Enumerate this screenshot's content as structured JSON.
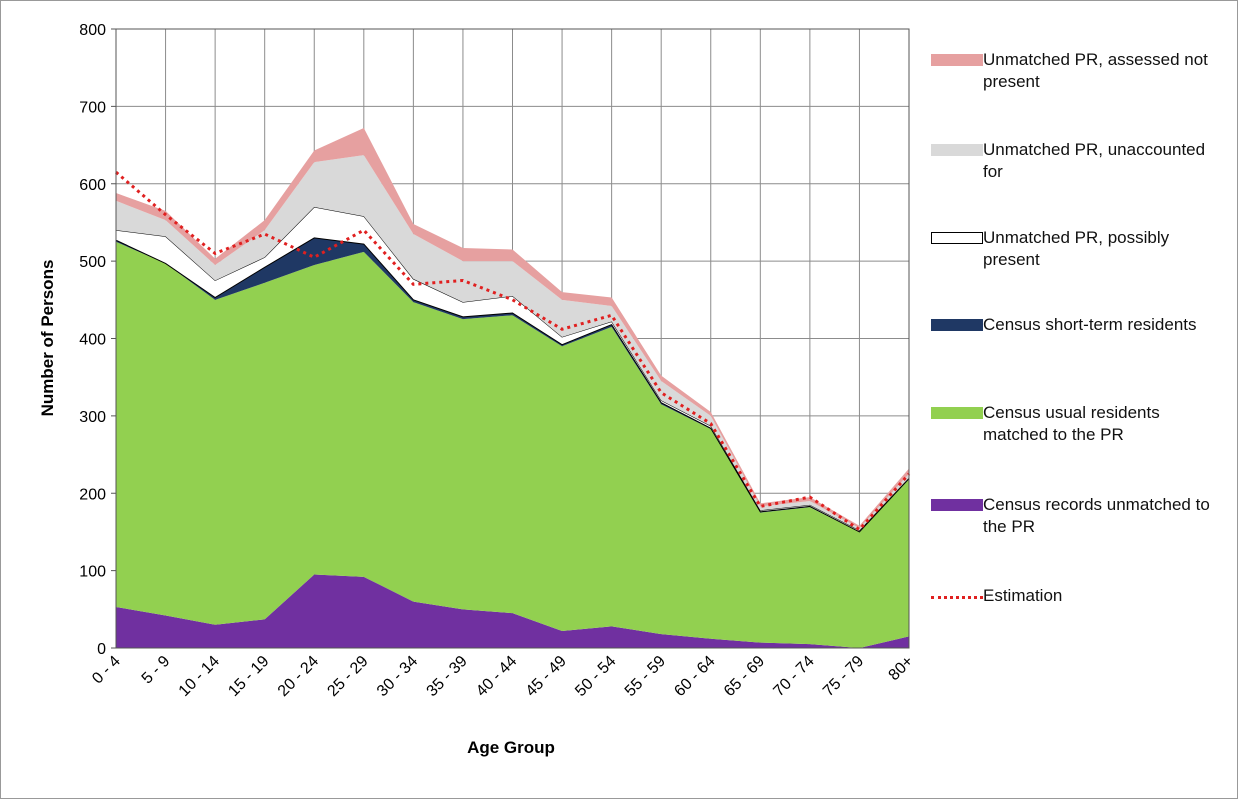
{
  "chart_data": {
    "type": "stacked_area",
    "x_label": "Age Group",
    "y_label": "Number of Persons",
    "categories": [
      "0 - 4",
      "5 - 9",
      "10 - 14",
      "15 - 19",
      "20 - 24",
      "25 - 29",
      "30 - 34",
      "35 - 39",
      "40 - 44",
      "45 - 49",
      "50 - 54",
      "55 - 59",
      "60 - 64",
      "65 - 69",
      "70 - 74",
      "75 - 79",
      "80+"
    ],
    "ylim": [
      0,
      800
    ],
    "yticks": [
      0,
      100,
      200,
      300,
      400,
      500,
      600,
      700,
      800
    ],
    "grid": true,
    "series": [
      {
        "name": "Census records unmatched to the PR",
        "color": "#7030a0",
        "values": [
          53,
          42,
          30,
          37,
          95,
          92,
          60,
          50,
          45,
          22,
          28,
          18,
          12,
          7,
          5,
          0,
          15
        ]
      },
      {
        "name": "Census usual residents matched to the PR",
        "color": "#92d050",
        "values": [
          472,
          455,
          420,
          435,
          400,
          420,
          387,
          375,
          385,
          368,
          387,
          297,
          271,
          168,
          177,
          150,
          203
        ]
      },
      {
        "name": "Census short-term residents",
        "color": "#1f3864",
        "values": [
          2,
          0,
          3,
          20,
          35,
          10,
          3,
          3,
          3,
          2,
          3,
          2,
          1,
          1,
          1,
          0,
          1
        ]
      },
      {
        "name": "Unmatched PR, possibly present",
        "color": "#ffffff",
        "values": [
          13,
          35,
          22,
          13,
          40,
          36,
          27,
          19,
          22,
          10,
          4,
          3,
          3,
          2,
          2,
          2,
          1
        ]
      },
      {
        "name": "Unmatched PR, unaccounted for",
        "color": "#d9d9d9",
        "values": [
          38,
          21,
          20,
          35,
          58,
          79,
          58,
          53,
          45,
          48,
          20,
          25,
          13,
          5,
          5,
          3,
          5
        ]
      },
      {
        "name": "Unmatched PR, assessed not present",
        "color": "#e6a0a0",
        "values": [
          10,
          12,
          8,
          13,
          15,
          35,
          13,
          17,
          15,
          10,
          11,
          7,
          5,
          4,
          5,
          3,
          7
        ]
      }
    ],
    "line": {
      "name": "Estimation",
      "color": "#e02020",
      "values": [
        615,
        560,
        510,
        535,
        505,
        540,
        470,
        475,
        450,
        412,
        430,
        330,
        290,
        183,
        195,
        153,
        225
      ]
    }
  }
}
